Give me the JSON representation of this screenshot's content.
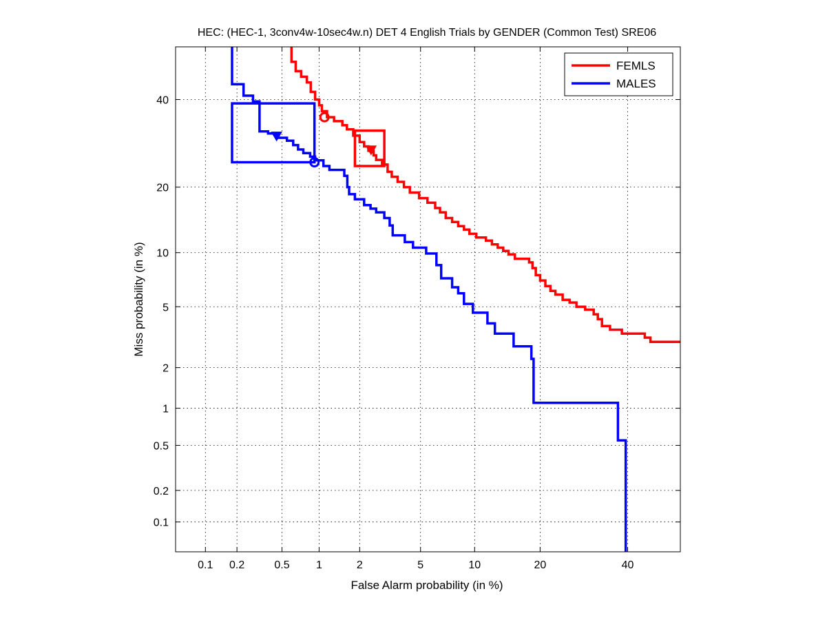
{
  "chart_data": {
    "type": "line",
    "title": "HEC: (HEC-1, 3conv4w-10sec4w.n) DET 4 English Trials by GENDER (Common Test) SRE06",
    "xlabel": "False Alarm probability (in %)",
    "ylabel": "Miss probability (in %)",
    "x_scale": "probit",
    "y_scale": "probit",
    "xlim": [
      0.05,
      54
    ],
    "ylim": [
      0.05,
      54
    ],
    "grid": true,
    "legend_position": "top-right",
    "x_ticks": [
      {
        "value": 0.1,
        "label": "0.1"
      },
      {
        "value": 0.2,
        "label": "0.2"
      },
      {
        "value": 0.5,
        "label": "0.5"
      },
      {
        "value": 1,
        "label": "1"
      },
      {
        "value": 2,
        "label": "2"
      },
      {
        "value": 5,
        "label": "5"
      },
      {
        "value": 10,
        "label": "10"
      },
      {
        "value": 20,
        "label": "20"
      },
      {
        "value": 40,
        "label": "40"
      }
    ],
    "y_ticks": [
      {
        "value": 0.1,
        "label": "0.1"
      },
      {
        "value": 0.2,
        "label": "0.2"
      },
      {
        "value": 0.5,
        "label": "0.5"
      },
      {
        "value": 1,
        "label": "1"
      },
      {
        "value": 2,
        "label": "2"
      },
      {
        "value": 5,
        "label": "5"
      },
      {
        "value": 10,
        "label": "10"
      },
      {
        "value": 20,
        "label": "20"
      },
      {
        "value": 40,
        "label": "40"
      }
    ],
    "series": [
      {
        "name": "FEMLS",
        "color": "#ff0000",
        "points": [
          [
            0.6,
            54
          ],
          [
            0.6,
            50
          ],
          [
            0.65,
            50
          ],
          [
            0.65,
            47.5
          ],
          [
            0.72,
            47.5
          ],
          [
            0.72,
            46
          ],
          [
            0.8,
            46
          ],
          [
            0.8,
            44.5
          ],
          [
            0.86,
            44.5
          ],
          [
            0.86,
            42
          ],
          [
            0.93,
            42
          ],
          [
            0.93,
            40
          ],
          [
            1.0,
            40
          ],
          [
            1.0,
            38.5
          ],
          [
            1.05,
            38.5
          ],
          [
            1.05,
            37
          ],
          [
            1.15,
            37
          ],
          [
            1.15,
            35.5
          ],
          [
            1.3,
            35.5
          ],
          [
            1.3,
            34.5
          ],
          [
            1.5,
            34.5
          ],
          [
            1.5,
            33.5
          ],
          [
            1.62,
            33.5
          ],
          [
            1.62,
            32.5
          ],
          [
            1.8,
            32.5
          ],
          [
            1.8,
            31
          ],
          [
            2.0,
            31
          ],
          [
            2.0,
            29.5
          ],
          [
            2.15,
            29.5
          ],
          [
            2.15,
            28.5
          ],
          [
            2.3,
            28.5
          ],
          [
            2.3,
            27.5
          ],
          [
            2.5,
            27.5
          ],
          [
            2.5,
            26.5
          ],
          [
            2.6,
            26.5
          ],
          [
            2.6,
            25.5
          ],
          [
            2.85,
            25.5
          ],
          [
            2.85,
            24.5
          ],
          [
            3.1,
            24.5
          ],
          [
            3.1,
            23
          ],
          [
            3.3,
            23
          ],
          [
            3.3,
            22
          ],
          [
            3.6,
            22
          ],
          [
            3.6,
            21
          ],
          [
            3.95,
            21
          ],
          [
            3.95,
            20
          ],
          [
            4.3,
            20
          ],
          [
            4.3,
            19
          ],
          [
            4.9,
            19
          ],
          [
            4.9,
            18
          ],
          [
            5.5,
            18
          ],
          [
            5.5,
            17.2
          ],
          [
            6.1,
            17.2
          ],
          [
            6.1,
            16.3
          ],
          [
            6.5,
            16.3
          ],
          [
            6.5,
            15.6
          ],
          [
            7.0,
            15.6
          ],
          [
            7.0,
            14.7
          ],
          [
            7.6,
            14.7
          ],
          [
            7.6,
            14.1
          ],
          [
            8.2,
            14.1
          ],
          [
            8.2,
            13.5
          ],
          [
            8.8,
            13.5
          ],
          [
            8.8,
            13.0
          ],
          [
            9.4,
            13.0
          ],
          [
            9.4,
            12.4
          ],
          [
            10.2,
            12.4
          ],
          [
            10.2,
            11.9
          ],
          [
            11.4,
            11.9
          ],
          [
            11.4,
            11.5
          ],
          [
            12.2,
            11.5
          ],
          [
            12.2,
            11.0
          ],
          [
            13.0,
            11.0
          ],
          [
            13.0,
            10.6
          ],
          [
            13.8,
            10.6
          ],
          [
            13.8,
            10.2
          ],
          [
            14.6,
            10.2
          ],
          [
            14.6,
            9.8
          ],
          [
            15.6,
            9.8
          ],
          [
            15.6,
            9.3
          ],
          [
            18.0,
            9.3
          ],
          [
            18.0,
            8.9
          ],
          [
            18.6,
            8.9
          ],
          [
            18.6,
            8.3
          ],
          [
            19.2,
            8.3
          ],
          [
            19.2,
            7.6
          ],
          [
            20.0,
            7.6
          ],
          [
            20.0,
            7.1
          ],
          [
            21.0,
            7.1
          ],
          [
            21.0,
            6.6
          ],
          [
            22.0,
            6.6
          ],
          [
            22.0,
            6.2
          ],
          [
            23.0,
            6.2
          ],
          [
            23.0,
            5.9
          ],
          [
            24.5,
            5.9
          ],
          [
            24.5,
            5.5
          ],
          [
            26.0,
            5.5
          ],
          [
            26.0,
            5.3
          ],
          [
            27.5,
            5.3
          ],
          [
            27.5,
            5.0
          ],
          [
            29.5,
            5.0
          ],
          [
            29.5,
            4.8
          ],
          [
            31.5,
            4.8
          ],
          [
            31.5,
            4.5
          ],
          [
            32.5,
            4.5
          ],
          [
            32.5,
            4.2
          ],
          [
            33.5,
            4.2
          ],
          [
            33.5,
            3.8
          ],
          [
            35.5,
            3.8
          ],
          [
            35.5,
            3.6
          ],
          [
            38.5,
            3.6
          ],
          [
            38.5,
            3.4
          ],
          [
            44.5,
            3.4
          ],
          [
            44.5,
            3.2
          ],
          [
            46.0,
            3.2
          ],
          [
            46.0,
            3.0
          ],
          [
            54,
            3.0
          ]
        ],
        "act_dcf_point": [
          1.1,
          35.5
        ],
        "min_dcf_point": [
          2.4,
          27.8
        ],
        "confidence_box": {
          "x": [
            1.85,
            2.95
          ],
          "y": [
            24.2,
            32.2
          ]
        }
      },
      {
        "name": "MALES",
        "color": "#0000ff",
        "points": [
          [
            0.18,
            54
          ],
          [
            0.18,
            44
          ],
          [
            0.23,
            44
          ],
          [
            0.23,
            41
          ],
          [
            0.28,
            41
          ],
          [
            0.28,
            39.5
          ],
          [
            0.32,
            39.5
          ],
          [
            0.32,
            32
          ],
          [
            0.38,
            32
          ],
          [
            0.38,
            31.5
          ],
          [
            0.46,
            31.5
          ],
          [
            0.46,
            30.5
          ],
          [
            0.55,
            30.5
          ],
          [
            0.55,
            29.8
          ],
          [
            0.62,
            29.8
          ],
          [
            0.62,
            28.8
          ],
          [
            0.68,
            28.8
          ],
          [
            0.68,
            27.8
          ],
          [
            0.75,
            27.8
          ],
          [
            0.75,
            27.0
          ],
          [
            0.85,
            27.0
          ],
          [
            0.85,
            26.2
          ],
          [
            0.93,
            26.2
          ],
          [
            0.93,
            25.4
          ],
          [
            1.08,
            25.4
          ],
          [
            1.08,
            24.2
          ],
          [
            1.2,
            24.2
          ],
          [
            1.2,
            23.4
          ],
          [
            1.55,
            23.4
          ],
          [
            1.55,
            22.2
          ],
          [
            1.63,
            22.2
          ],
          [
            1.63,
            20.0
          ],
          [
            1.68,
            20.0
          ],
          [
            1.68,
            18.7
          ],
          [
            1.85,
            18.7
          ],
          [
            1.85,
            17.8
          ],
          [
            2.15,
            17.8
          ],
          [
            2.15,
            16.8
          ],
          [
            2.38,
            16.8
          ],
          [
            2.38,
            16.2
          ],
          [
            2.6,
            16.2
          ],
          [
            2.6,
            15.6
          ],
          [
            2.95,
            15.6
          ],
          [
            2.95,
            14.7
          ],
          [
            3.2,
            14.7
          ],
          [
            3.2,
            13.6
          ],
          [
            3.35,
            13.6
          ],
          [
            3.35,
            12.2
          ],
          [
            4.0,
            12.2
          ],
          [
            4.0,
            11.3
          ],
          [
            4.5,
            11.3
          ],
          [
            4.5,
            10.6
          ],
          [
            5.4,
            10.6
          ],
          [
            5.4,
            9.9
          ],
          [
            6.2,
            9.9
          ],
          [
            6.2,
            8.6
          ],
          [
            6.6,
            8.6
          ],
          [
            6.6,
            7.3
          ],
          [
            7.6,
            7.3
          ],
          [
            7.6,
            6.5
          ],
          [
            8.2,
            6.5
          ],
          [
            8.2,
            6.0
          ],
          [
            8.8,
            6.0
          ],
          [
            8.8,
            5.2
          ],
          [
            9.8,
            5.2
          ],
          [
            9.8,
            4.6
          ],
          [
            11.6,
            4.6
          ],
          [
            11.6,
            3.95
          ],
          [
            12.6,
            3.95
          ],
          [
            12.6,
            3.4
          ],
          [
            15.4,
            3.4
          ],
          [
            15.4,
            2.8
          ],
          [
            18.4,
            2.8
          ],
          [
            18.4,
            2.3
          ],
          [
            18.8,
            2.3
          ],
          [
            18.8,
            1.1
          ],
          [
            37.5,
            1.1
          ],
          [
            37.5,
            0.55
          ],
          [
            39.5,
            0.55
          ],
          [
            39.5,
            0.05
          ]
        ],
        "act_dcf_point": [
          0.92,
          25.0
        ],
        "min_dcf_point": [
          0.45,
          31.0
        ],
        "confidence_box": {
          "x": [
            0.18,
            0.92
          ],
          "y": [
            25.0,
            39.0
          ]
        }
      }
    ]
  }
}
